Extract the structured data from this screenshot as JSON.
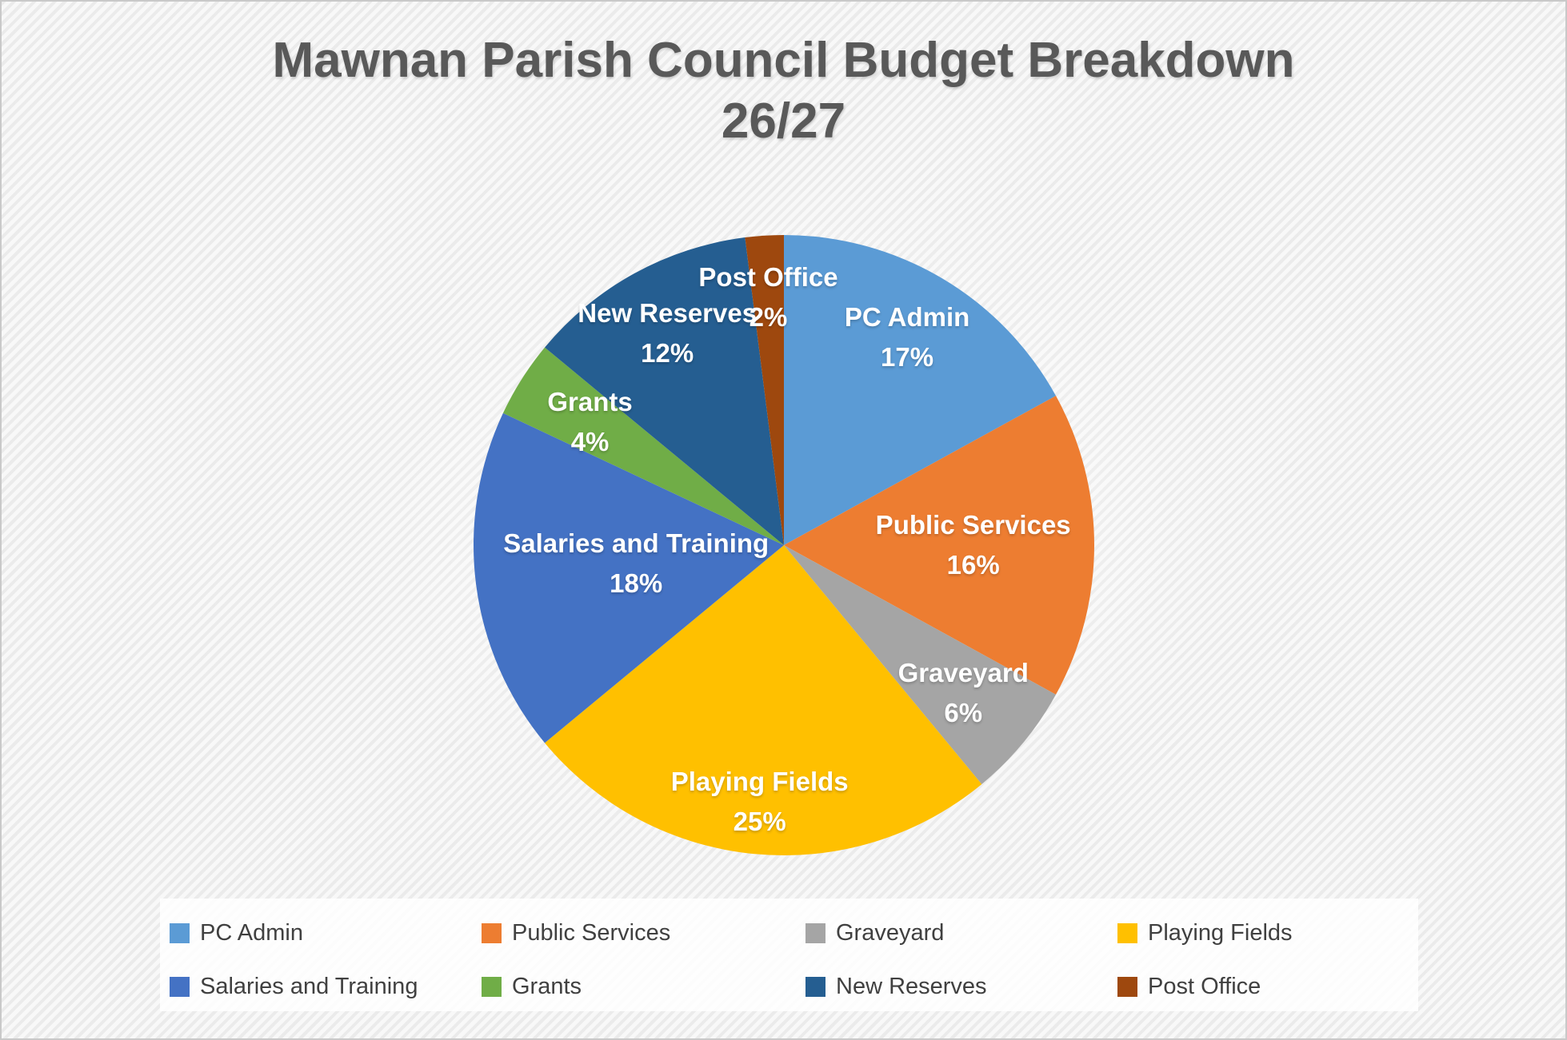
{
  "title": {
    "line1": "Mawnan Parish Council Budget Breakdown",
    "line2": "26/27"
  },
  "chart_data": {
    "type": "pie",
    "title": "Mawnan Parish Council Budget Breakdown 26/27",
    "unit": "percent",
    "start_angle_deg": 0,
    "direction": "clockwise",
    "legend_position": "bottom",
    "data_label_format": "{label} {value}%",
    "data_label_color": "#FFFFFF",
    "slices": [
      {
        "label": "PC Admin",
        "value": 17,
        "display_value": "17%",
        "color": "#5B9BD5"
      },
      {
        "label": "Public Services",
        "value": 16,
        "display_value": "16%",
        "color": "#ED7D31"
      },
      {
        "label": "Graveyard",
        "value": 6,
        "display_value": "6%",
        "color": "#A5A5A5"
      },
      {
        "label": "Playing Fields",
        "value": 25,
        "display_value": "25%",
        "color": "#FFC000"
      },
      {
        "label": "Salaries and Training",
        "value": 18,
        "display_value": "18%",
        "color": "#4472C4"
      },
      {
        "label": "Grants",
        "value": 4,
        "display_value": "4%",
        "color": "#70AD47"
      },
      {
        "label": "New Reserves",
        "value": 12,
        "display_value": "12%",
        "color": "#255E91"
      },
      {
        "label": "Post Office",
        "value": 2,
        "display_value": "2%",
        "color": "#9E480E"
      }
    ]
  }
}
